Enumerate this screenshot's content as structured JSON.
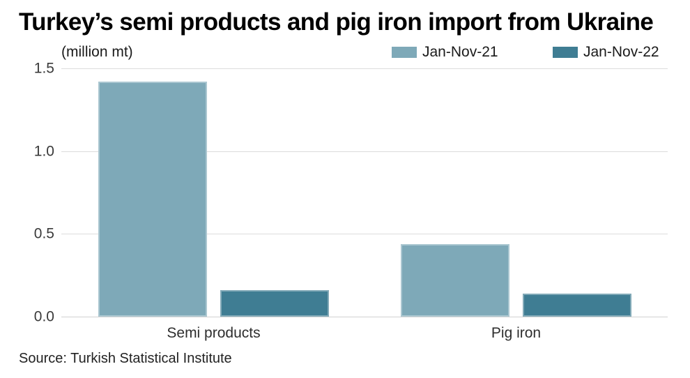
{
  "chart_data": {
    "type": "bar",
    "title": "Turkey’s semi products and pig iron import from Ukraine",
    "units_label": "(million mt)",
    "categories": [
      "Semi products",
      "Pig iron"
    ],
    "series": [
      {
        "name": "Jan-Nov-21",
        "color": "#7EA9B8",
        "values": [
          1.42,
          0.44
        ]
      },
      {
        "name": "Jan-Nov-22",
        "color": "#3F7D93",
        "values": [
          0.16,
          0.14
        ]
      }
    ],
    "ylim": [
      0,
      1.5
    ],
    "yticks": [
      0.0,
      0.5,
      1.0,
      1.5
    ],
    "ytick_labels": [
      "0.0",
      "0.5",
      "1.0",
      "1.5"
    ],
    "grid": true,
    "legend_position": "top-right"
  },
  "footer": {
    "source": "Source: Turkish Statistical Institute"
  },
  "colors": {
    "background": "#ffffff",
    "grid": "#dcdcdc",
    "baseline": "#d2d2d2",
    "title_text": "#000000",
    "axis_text": "#3a3a3a"
  }
}
